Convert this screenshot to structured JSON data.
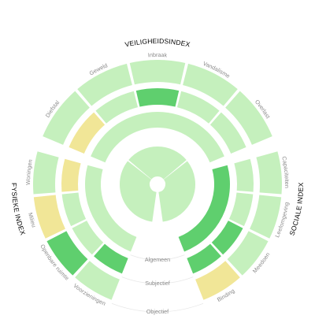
{
  "colors": {
    "very_dark": "#5fcf6e",
    "dark": "#9ee29a",
    "light": "#c5f0bd",
    "warn": "#f1e697",
    "ring_label_arc": "#e8e8e8"
  },
  "chart_data": {
    "type": "sunburst",
    "groups": [
      {
        "key": "veiligheid",
        "title": "VEILIGHEIDSINDEX"
      },
      {
        "key": "sociaal",
        "title": "SOCIALE INDEX"
      },
      {
        "key": "fysiek",
        "title": "FYSIEKE INDEX"
      }
    ],
    "rings": [
      {
        "key": "algemeen",
        "label": "Algemeen"
      },
      {
        "key": "subjectief",
        "label": "Subjectief"
      },
      {
        "key": "objectief",
        "label": "Objectief"
      }
    ],
    "segments": {
      "objectief": {
        "veiligheid": [
          {
            "label": "Diefstal",
            "level": "light"
          },
          {
            "label": "Geweld",
            "level": "light"
          },
          {
            "label": "Inbraak",
            "level": "light"
          },
          {
            "label": "Vandalisme",
            "level": "light"
          },
          {
            "label": "Overlast",
            "level": "light"
          }
        ],
        "sociaal": [
          {
            "label": "Capaciteiten",
            "level": "light"
          },
          {
            "label": "Leefomgeving",
            "level": "light"
          },
          {
            "label": "Meedoen",
            "level": "light"
          },
          {
            "label": "Binding",
            "level": "warn"
          }
        ],
        "fysiek": [
          {
            "label": "Voorzieningen",
            "level": "light"
          },
          {
            "label": "Openbare ruimte",
            "level": "very_dark"
          },
          {
            "label": "Milieu",
            "level": "warn"
          },
          {
            "label": "Woningen",
            "level": "light"
          }
        ]
      },
      "subjectief": {
        "veiligheid": [
          "warn",
          "light",
          "very_dark",
          "light",
          "light"
        ],
        "sociaal": [
          "light",
          "light",
          "very_dark",
          "very_dark"
        ],
        "fysiek": [
          "very_dark",
          "light",
          "light",
          "warn"
        ]
      },
      "algemeen": {
        "veiligheid": [
          "light"
        ],
        "sociaal": [
          "very_dark"
        ],
        "fysiek": [
          "light"
        ]
      },
      "center": [
        "light",
        "light",
        "light"
      ]
    }
  }
}
